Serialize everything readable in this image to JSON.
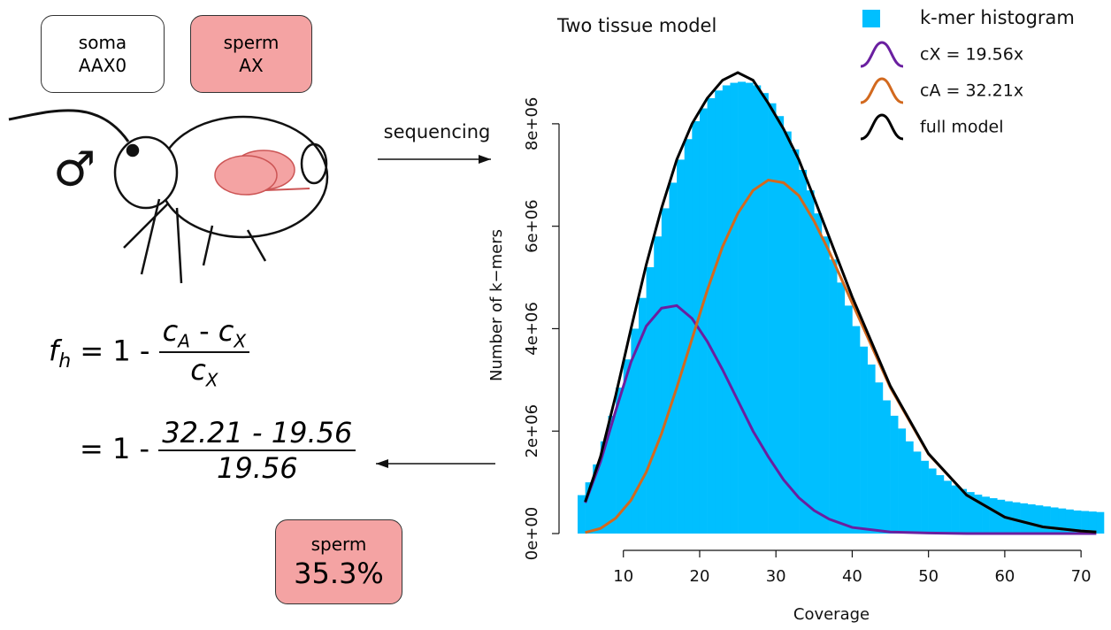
{
  "chart_data": {
    "type": "histogram",
    "title": "Two tissue model",
    "x_label": "Coverage",
    "y_label": "Number of k−mers",
    "name": "k-mer histogram",
    "color": "#00bfff",
    "bins": [
      4,
      5,
      6,
      7,
      8,
      9,
      10,
      11,
      12,
      13,
      14,
      15,
      16,
      17,
      18,
      19,
      20,
      21,
      22,
      23,
      24,
      25,
      26,
      27,
      28,
      29,
      30,
      31,
      32,
      33,
      34,
      35,
      36,
      37,
      38,
      39,
      40,
      41,
      42,
      43,
      44,
      45,
      46,
      47,
      48,
      49,
      50,
      51,
      52,
      53,
      54,
      55,
      56,
      57,
      58,
      59,
      60,
      61,
      62,
      63,
      64,
      65,
      66,
      67,
      68,
      69,
      70,
      71,
      72,
      73
    ],
    "values": [
      750000,
      1000000,
      1350000,
      1800000,
      2300000,
      2850000,
      3400000,
      4000000,
      4600000,
      5200000,
      5800000,
      6350000,
      6850000,
      7300000,
      7700000,
      8050000,
      8300000,
      8500000,
      8650000,
      8750000,
      8800000,
      8820000,
      8800000,
      8750000,
      8600000,
      8400000,
      8150000,
      7850000,
      7500000,
      7100000,
      6700000,
      6250000,
      5800000,
      5350000,
      4900000,
      4450000,
      4050000,
      3650000,
      3300000,
      2950000,
      2600000,
      2300000,
      2050000,
      1800000,
      1600000,
      1420000,
      1270000,
      1140000,
      1030000,
      940000,
      870000,
      810000,
      760000,
      720000,
      690000,
      660000,
      630000,
      610000,
      590000,
      570000,
      550000,
      530000,
      510000,
      490000,
      470000,
      450000,
      440000,
      430000,
      420000
    ],
    "series": [
      {
        "name": "cX = 19.56x",
        "color": "#6a1fa0",
        "x": [
          5,
          7,
          9,
          11,
          13,
          15,
          17,
          19,
          21,
          23,
          25,
          27,
          29,
          31,
          33,
          35,
          37,
          40,
          45,
          50,
          55,
          60,
          65,
          70,
          72
        ],
        "values": [
          600000,
          1400000,
          2400000,
          3350000,
          4050000,
          4400000,
          4450000,
          4200000,
          3750000,
          3200000,
          2600000,
          2000000,
          1500000,
          1050000,
          700000,
          450000,
          280000,
          120000,
          30000,
          10000,
          0,
          0,
          0,
          0,
          0
        ]
      },
      {
        "name": "cA = 32.21x",
        "color": "#d2691e",
        "x": [
          5,
          7,
          9,
          11,
          13,
          15,
          17,
          19,
          21,
          23,
          25,
          27,
          29,
          31,
          33,
          35,
          37,
          40,
          45,
          50,
          55,
          60,
          65,
          70,
          72
        ],
        "values": [
          20000,
          100000,
          300000,
          650000,
          1200000,
          1950000,
          2850000,
          3800000,
          4750000,
          5600000,
          6250000,
          6700000,
          6900000,
          6850000,
          6600000,
          6100000,
          5500000,
          4500000,
          2850000,
          1550000,
          750000,
          320000,
          130000,
          50000,
          30000
        ]
      },
      {
        "name": "full model",
        "color": "#000000",
        "x": [
          5,
          7,
          9,
          11,
          13,
          15,
          17,
          19,
          21,
          23,
          25,
          27,
          29,
          31,
          33,
          35,
          37,
          40,
          45,
          50,
          55,
          60,
          65,
          70,
          72
        ],
        "values": [
          620000,
          1500000,
          2700000,
          4000000,
          5250000,
          6350000,
          7300000,
          8000000,
          8500000,
          8850000,
          9000000,
          8850000,
          8400000,
          7900000,
          7300000,
          6550000,
          5780000,
          4620000,
          2880000,
          1560000,
          750000,
          320000,
          130000,
          50000,
          30000
        ]
      }
    ],
    "xlim": [
      4,
      73
    ],
    "xticks": [
      10,
      20,
      30,
      40,
      50,
      60,
      70
    ],
    "ylim": [
      0,
      9000000
    ],
    "yticks": [
      {
        "value": 0,
        "label": "0e+00"
      },
      {
        "value": 2000000,
        "label": "2e+06"
      },
      {
        "value": 4000000,
        "label": "4e+06"
      },
      {
        "value": 6000000,
        "label": "6e+06"
      },
      {
        "value": 8000000,
        "label": "8e+06"
      }
    ],
    "legend": "top-right"
  },
  "diagram": {
    "soma": {
      "line1": "soma",
      "line2": "AAX0"
    },
    "sperm": {
      "line1": "sperm",
      "line2": "AX"
    },
    "sex": "♂",
    "arrow_label": "sequencing",
    "formula": {
      "f": "f",
      "f_sub": "h",
      "eq": "= 1 -",
      "c1": "c",
      "sub1": "A",
      "minus": "- ",
      "c2": "c",
      "sub2": "X",
      "c3": "c",
      "sub3": "X"
    },
    "calc": {
      "eq": "= 1 -",
      "numerator": "32.21 - 19.56",
      "denominator": "19.56"
    },
    "result": {
      "label": "sperm",
      "value": "35.3%"
    }
  }
}
